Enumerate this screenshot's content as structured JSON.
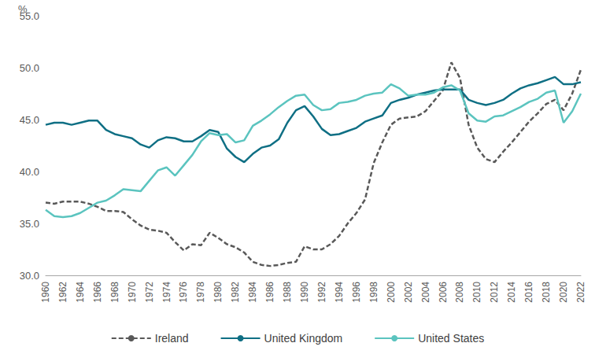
{
  "chart_data": {
    "type": "line",
    "y_label": "%",
    "categories": [
      "1960",
      null,
      "1962",
      null,
      "1964",
      null,
      "1966",
      null,
      "1968",
      null,
      "1970",
      null,
      "1972",
      null,
      "1974",
      null,
      "1976",
      null,
      "1978",
      null,
      "1980",
      null,
      "1982",
      null,
      "1984",
      null,
      "1986",
      null,
      "1988",
      null,
      "1990",
      null,
      "1992",
      null,
      "1994",
      null,
      "1996",
      null,
      "1998",
      null,
      "2000",
      null,
      "2002",
      null,
      "2004",
      null,
      "2006",
      null,
      "2008",
      null,
      "2010",
      null,
      "2012",
      null,
      "2014",
      null,
      "2016",
      null,
      "2018",
      null,
      "2020",
      null,
      "2022"
    ],
    "series": [
      {
        "name": "Ireland",
        "color": "#595959",
        "line_style": "dashed",
        "values": [
          37.0,
          36.9,
          37.1,
          37.1,
          37.1,
          36.9,
          36.6,
          36.2,
          36.2,
          36.1,
          35.4,
          34.8,
          34.4,
          34.3,
          34.1,
          33.2,
          32.4,
          33.0,
          32.9,
          34.1,
          33.6,
          33.0,
          32.7,
          32.2,
          31.3,
          31.0,
          30.9,
          31.0,
          31.2,
          31.3,
          32.8,
          32.5,
          32.5,
          33.0,
          33.8,
          35.0,
          36.0,
          37.3,
          40.8,
          42.8,
          44.5,
          45.1,
          45.2,
          45.3,
          45.8,
          46.8,
          47.8,
          50.5,
          49.0,
          44.5,
          42.3,
          41.2,
          40.9,
          41.9,
          42.8,
          43.8,
          44.8,
          45.6,
          46.5,
          46.9,
          45.9,
          47.5,
          49.8
        ]
      },
      {
        "name": "United Kingdom",
        "color": "#0f6f84",
        "line_style": "solid",
        "values": [
          44.5,
          44.7,
          44.7,
          44.5,
          44.7,
          44.9,
          44.9,
          44.0,
          43.6,
          43.4,
          43.2,
          42.6,
          42.3,
          43.0,
          43.3,
          43.2,
          42.9,
          42.9,
          43.4,
          44.0,
          43.8,
          42.2,
          41.4,
          40.9,
          41.7,
          42.3,
          42.5,
          43.1,
          44.7,
          45.9,
          46.3,
          45.3,
          44.1,
          43.5,
          43.6,
          43.9,
          44.2,
          44.8,
          45.1,
          45.4,
          46.6,
          46.9,
          47.1,
          47.4,
          47.6,
          47.8,
          47.9,
          47.9,
          47.9,
          46.9,
          46.6,
          46.4,
          46.6,
          46.9,
          47.5,
          48.0,
          48.3,
          48.5,
          48.8,
          49.1,
          48.4,
          48.4,
          48.6
        ]
      },
      {
        "name": "United States",
        "color": "#5bc4bf",
        "line_style": "solid",
        "values": [
          36.3,
          35.7,
          35.6,
          35.7,
          36.0,
          36.5,
          37.0,
          37.2,
          37.7,
          38.3,
          38.2,
          38.1,
          39.1,
          40.1,
          40.4,
          39.6,
          40.6,
          41.6,
          42.9,
          43.7,
          43.5,
          43.6,
          42.8,
          43.0,
          44.4,
          44.9,
          45.5,
          46.2,
          46.8,
          47.3,
          47.4,
          46.4,
          45.9,
          46.0,
          46.6,
          46.7,
          46.9,
          47.3,
          47.5,
          47.6,
          48.4,
          48.0,
          47.3,
          47.4,
          47.4,
          47.6,
          48.1,
          48.3,
          47.8,
          45.6,
          44.9,
          44.8,
          45.3,
          45.4,
          45.8,
          46.2,
          46.7,
          47.0,
          47.6,
          47.8,
          44.7,
          45.8,
          47.5
        ]
      }
    ],
    "ylim": [
      30,
      55
    ],
    "yticks": [
      {
        "value": 30,
        "label": "30.0"
      },
      {
        "value": 35,
        "label": "35.0"
      },
      {
        "value": 40,
        "label": "40.0"
      },
      {
        "value": 45,
        "label": "45.0"
      },
      {
        "value": 50,
        "label": "50.0"
      },
      {
        "value": 55,
        "label": "55.0"
      }
    ],
    "grid": false,
    "legend": "bottom"
  }
}
